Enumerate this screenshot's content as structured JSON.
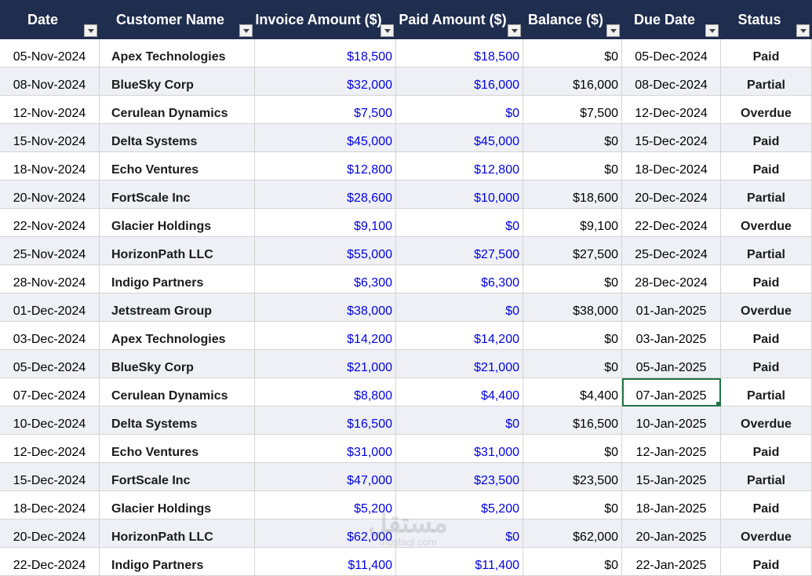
{
  "headers": [
    {
      "label": "Date"
    },
    {
      "label": "Customer Name"
    },
    {
      "label": "Invoice Amount ($)"
    },
    {
      "label": "Paid Amount ($)"
    },
    {
      "label": "Balance ($)"
    },
    {
      "label": "Due Date"
    },
    {
      "label": "Status"
    }
  ],
  "rows": [
    {
      "date": "05-Nov-2024",
      "customer": "Apex Technologies",
      "invoice": "$18,500",
      "paid": "$18,500",
      "balance": "$0",
      "due": "05-Dec-2024",
      "status": "Paid"
    },
    {
      "date": "08-Nov-2024",
      "customer": "BlueSky Corp",
      "invoice": "$32,000",
      "paid": "$16,000",
      "balance": "$16,000",
      "due": "08-Dec-2024",
      "status": "Partial"
    },
    {
      "date": "12-Nov-2024",
      "customer": "Cerulean Dynamics",
      "invoice": "$7,500",
      "paid": "$0",
      "balance": "$7,500",
      "due": "12-Dec-2024",
      "status": "Overdue"
    },
    {
      "date": "15-Nov-2024",
      "customer": "Delta Systems",
      "invoice": "$45,000",
      "paid": "$45,000",
      "balance": "$0",
      "due": "15-Dec-2024",
      "status": "Paid"
    },
    {
      "date": "18-Nov-2024",
      "customer": "Echo Ventures",
      "invoice": "$12,800",
      "paid": "$12,800",
      "balance": "$0",
      "due": "18-Dec-2024",
      "status": "Paid"
    },
    {
      "date": "20-Nov-2024",
      "customer": "FortScale Inc",
      "invoice": "$28,600",
      "paid": "$10,000",
      "balance": "$18,600",
      "due": "20-Dec-2024",
      "status": "Partial"
    },
    {
      "date": "22-Nov-2024",
      "customer": "Glacier Holdings",
      "invoice": "$9,100",
      "paid": "$0",
      "balance": "$9,100",
      "due": "22-Dec-2024",
      "status": "Overdue"
    },
    {
      "date": "25-Nov-2024",
      "customer": "HorizonPath LLC",
      "invoice": "$55,000",
      "paid": "$27,500",
      "balance": "$27,500",
      "due": "25-Dec-2024",
      "status": "Partial"
    },
    {
      "date": "28-Nov-2024",
      "customer": "Indigo Partners",
      "invoice": "$6,300",
      "paid": "$6,300",
      "balance": "$0",
      "due": "28-Dec-2024",
      "status": "Paid"
    },
    {
      "date": "01-Dec-2024",
      "customer": "Jetstream Group",
      "invoice": "$38,000",
      "paid": "$0",
      "balance": "$38,000",
      "due": "01-Jan-2025",
      "status": "Overdue"
    },
    {
      "date": "03-Dec-2024",
      "customer": "Apex Technologies",
      "invoice": "$14,200",
      "paid": "$14,200",
      "balance": "$0",
      "due": "03-Jan-2025",
      "status": "Paid"
    },
    {
      "date": "05-Dec-2024",
      "customer": "BlueSky Corp",
      "invoice": "$21,000",
      "paid": "$21,000",
      "balance": "$0",
      "due": "05-Jan-2025",
      "status": "Paid"
    },
    {
      "date": "07-Dec-2024",
      "customer": "Cerulean Dynamics",
      "invoice": "$8,800",
      "paid": "$4,400",
      "balance": "$4,400",
      "due": "07-Jan-2025",
      "status": "Partial"
    },
    {
      "date": "10-Dec-2024",
      "customer": "Delta Systems",
      "invoice": "$16,500",
      "paid": "$0",
      "balance": "$16,500",
      "due": "10-Jan-2025",
      "status": "Overdue"
    },
    {
      "date": "12-Dec-2024",
      "customer": "Echo Ventures",
      "invoice": "$31,000",
      "paid": "$31,000",
      "balance": "$0",
      "due": "12-Jan-2025",
      "status": "Paid"
    },
    {
      "date": "15-Dec-2024",
      "customer": "FortScale Inc",
      "invoice": "$47,000",
      "paid": "$23,500",
      "balance": "$23,500",
      "due": "15-Jan-2025",
      "status": "Partial"
    },
    {
      "date": "18-Dec-2024",
      "customer": "Glacier Holdings",
      "invoice": "$5,200",
      "paid": "$5,200",
      "balance": "$0",
      "due": "18-Jan-2025",
      "status": "Paid"
    },
    {
      "date": "20-Dec-2024",
      "customer": "HorizonPath LLC",
      "invoice": "$62,000",
      "paid": "$0",
      "balance": "$62,000",
      "due": "20-Jan-2025",
      "status": "Overdue"
    },
    {
      "date": "22-Dec-2024",
      "customer": "Indigo Partners",
      "invoice": "$11,400",
      "paid": "$11,400",
      "balance": "$0",
      "due": "22-Jan-2025",
      "status": "Paid"
    }
  ],
  "selected_cell": {
    "row": 12,
    "column": "due"
  },
  "watermark": {
    "brand": "مستقل",
    "url": "mostaql.com"
  },
  "colors": {
    "header_bg": "#1f2d4e",
    "money_text": "#0000e6",
    "alt_row": "#eef0f5",
    "selection": "#217346"
  }
}
